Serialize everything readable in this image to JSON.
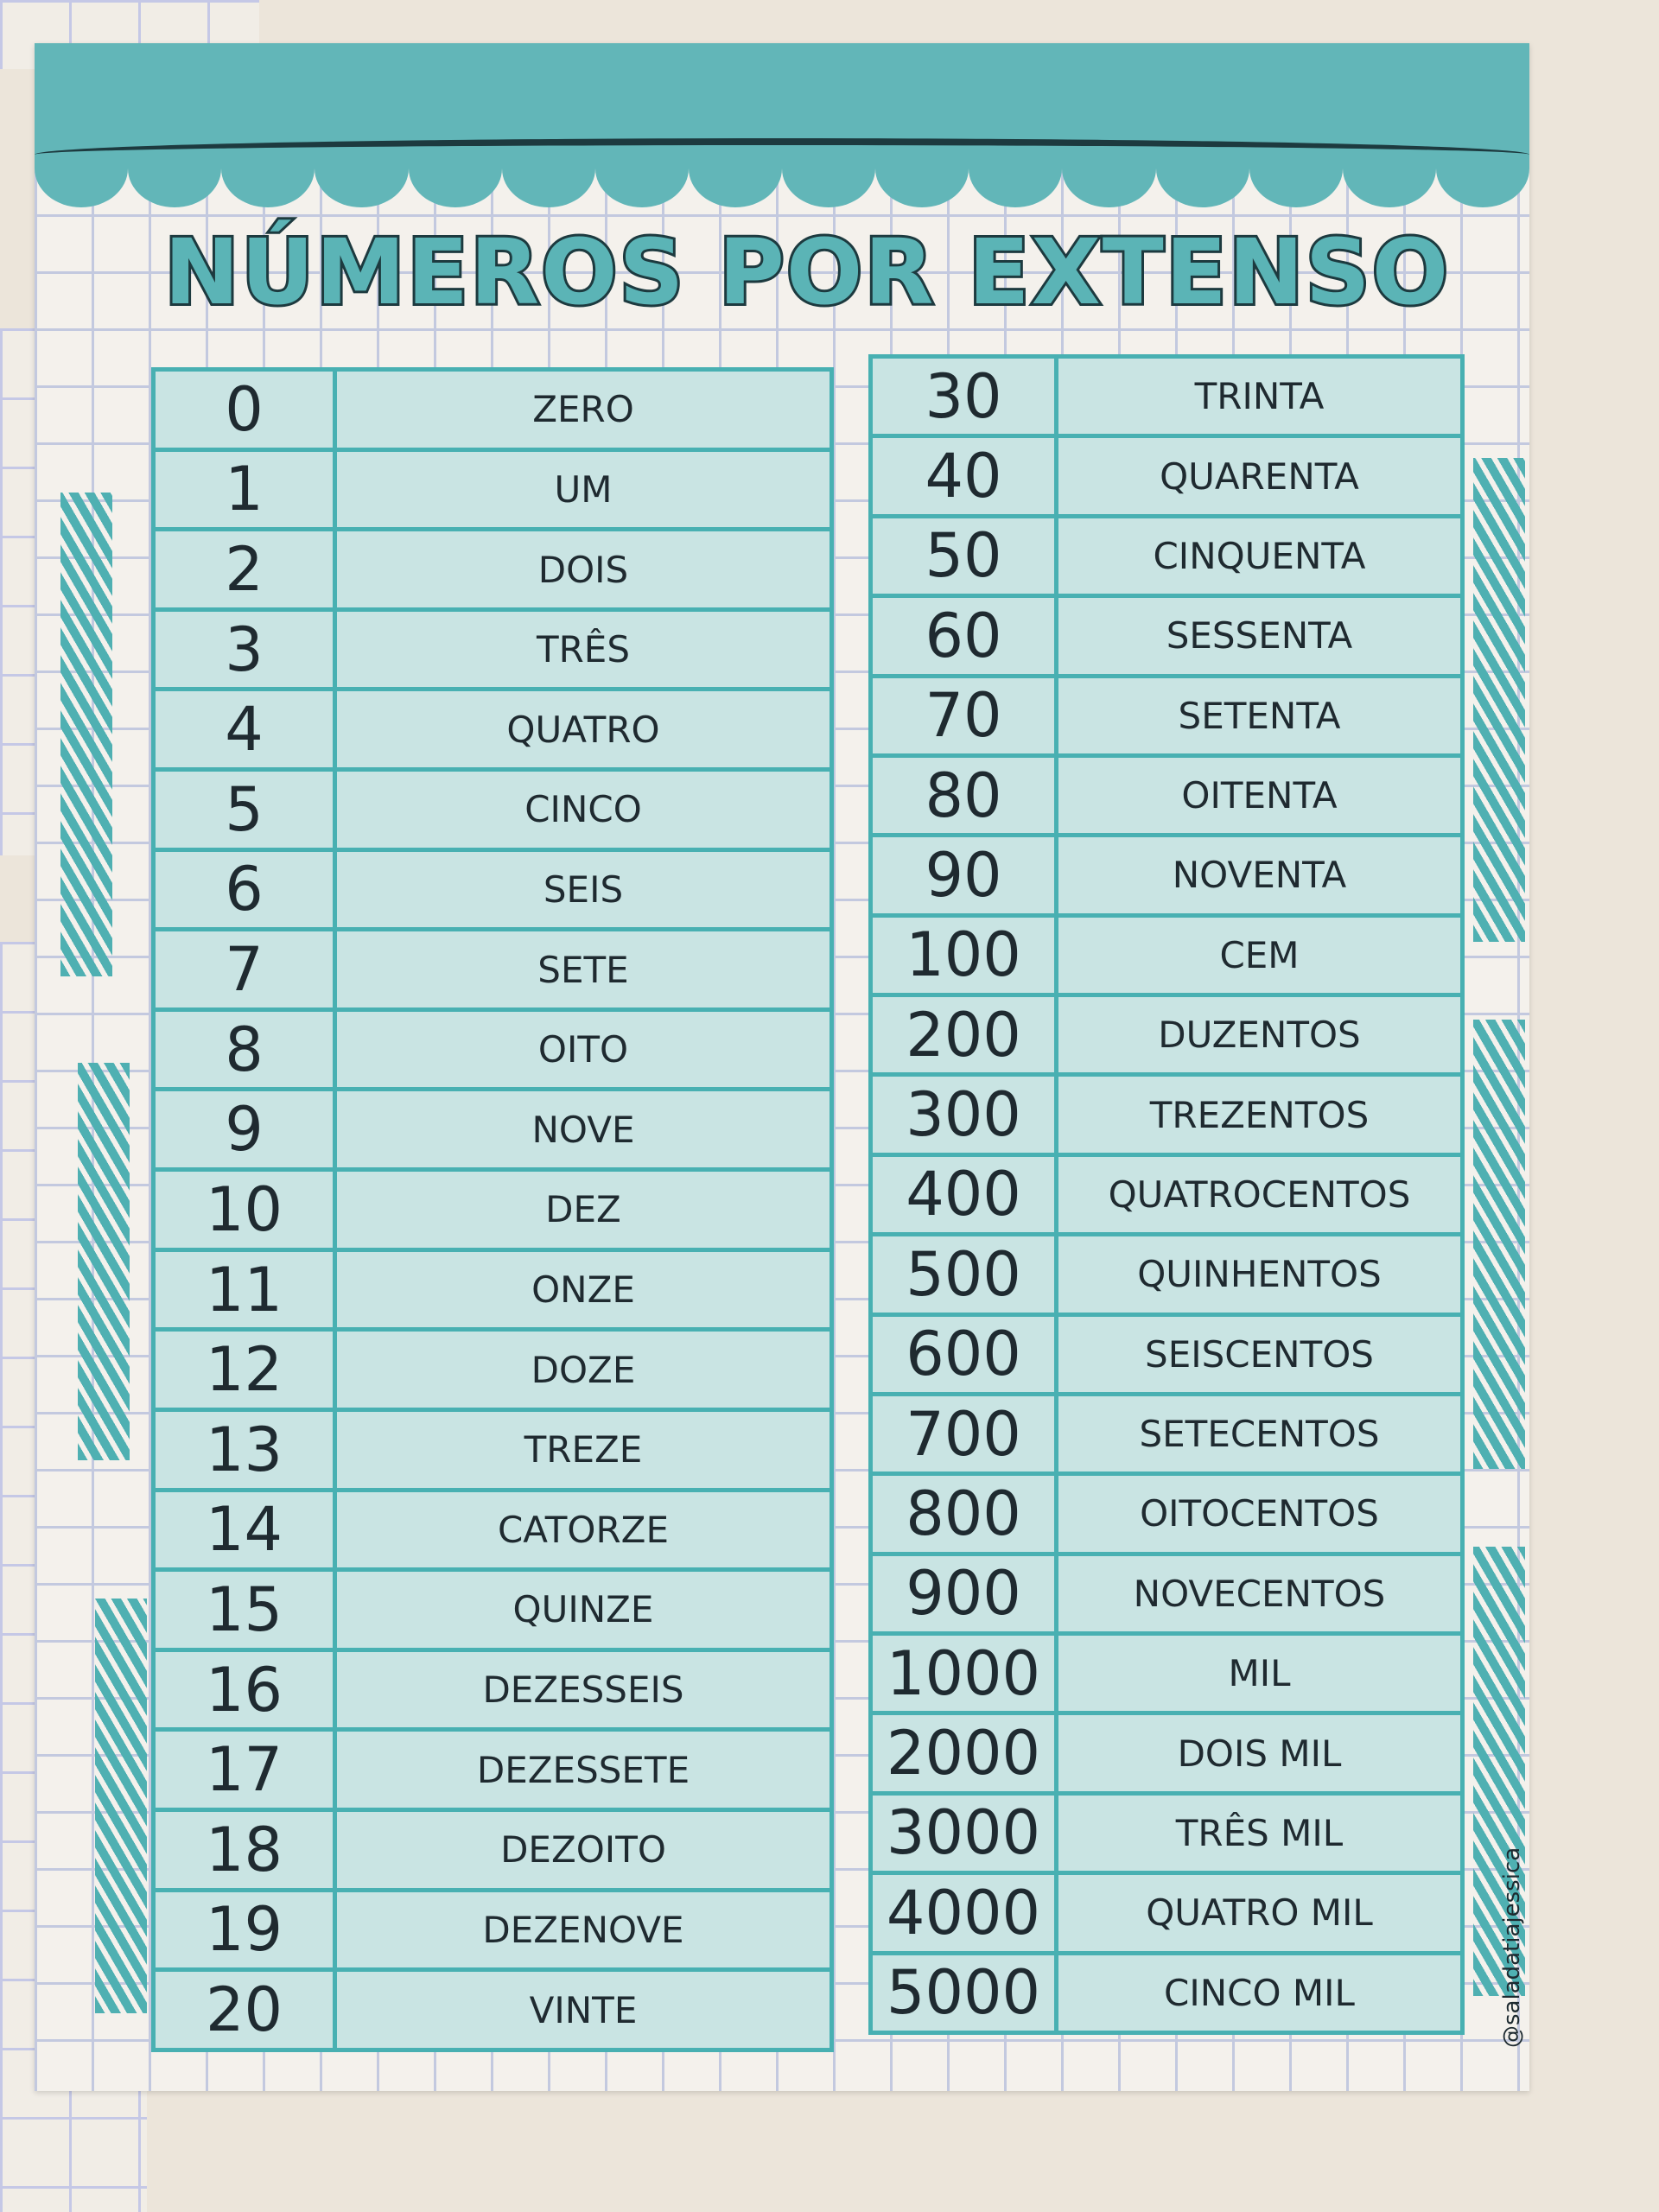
{
  "poster": {
    "title": "NÚMEROS POR EXTENSO",
    "handle": "@saladatiajessica",
    "colors": {
      "teal": "#5bb4b6",
      "cell": "#c9e4e3",
      "outline": "#1d3a3f",
      "wall": "#ece5da"
    }
  },
  "left_table": [
    {
      "n": "0",
      "w": "ZERO"
    },
    {
      "n": "1",
      "w": "UM"
    },
    {
      "n": "2",
      "w": "DOIS"
    },
    {
      "n": "3",
      "w": "TRÊS"
    },
    {
      "n": "4",
      "w": "QUATRO"
    },
    {
      "n": "5",
      "w": "CINCO"
    },
    {
      "n": "6",
      "w": "SEIS"
    },
    {
      "n": "7",
      "w": "SETE"
    },
    {
      "n": "8",
      "w": "OITO"
    },
    {
      "n": "9",
      "w": "NOVE"
    },
    {
      "n": "10",
      "w": "DEZ"
    },
    {
      "n": "11",
      "w": "ONZE"
    },
    {
      "n": "12",
      "w": "DOZE"
    },
    {
      "n": "13",
      "w": "TREZE"
    },
    {
      "n": "14",
      "w": "CATORZE"
    },
    {
      "n": "15",
      "w": "QUINZE"
    },
    {
      "n": "16",
      "w": "DEZESSEIS"
    },
    {
      "n": "17",
      "w": "DEZESSETE"
    },
    {
      "n": "18",
      "w": "DEZOITO"
    },
    {
      "n": "19",
      "w": "DEZENOVE"
    },
    {
      "n": "20",
      "w": "VINTE"
    }
  ],
  "right_table": [
    {
      "n": "30",
      "w": "TRINTA"
    },
    {
      "n": "40",
      "w": "QUARENTA"
    },
    {
      "n": "50",
      "w": "CINQUENTA"
    },
    {
      "n": "60",
      "w": "SESSENTA"
    },
    {
      "n": "70",
      "w": "SETENTA"
    },
    {
      "n": "80",
      "w": "OITENTA"
    },
    {
      "n": "90",
      "w": "NOVENTA"
    },
    {
      "n": "100",
      "w": "CEM"
    },
    {
      "n": "200",
      "w": "DUZENTOS"
    },
    {
      "n": "300",
      "w": "TREZENTOS"
    },
    {
      "n": "400",
      "w": "QUATROCENTOS"
    },
    {
      "n": "500",
      "w": "QUINHENTOS"
    },
    {
      "n": "600",
      "w": "SEISCENTOS"
    },
    {
      "n": "700",
      "w": "SETECENTOS"
    },
    {
      "n": "800",
      "w": "OITOCENTOS"
    },
    {
      "n": "900",
      "w": "NOVECENTOS"
    },
    {
      "n": "1000",
      "w": "MIL"
    },
    {
      "n": "2000",
      "w": "DOIS MIL"
    },
    {
      "n": "3000",
      "w": "TRÊS MIL"
    },
    {
      "n": "4000",
      "w": "QUATRO MIL"
    },
    {
      "n": "5000",
      "w": "CINCO MIL"
    }
  ]
}
